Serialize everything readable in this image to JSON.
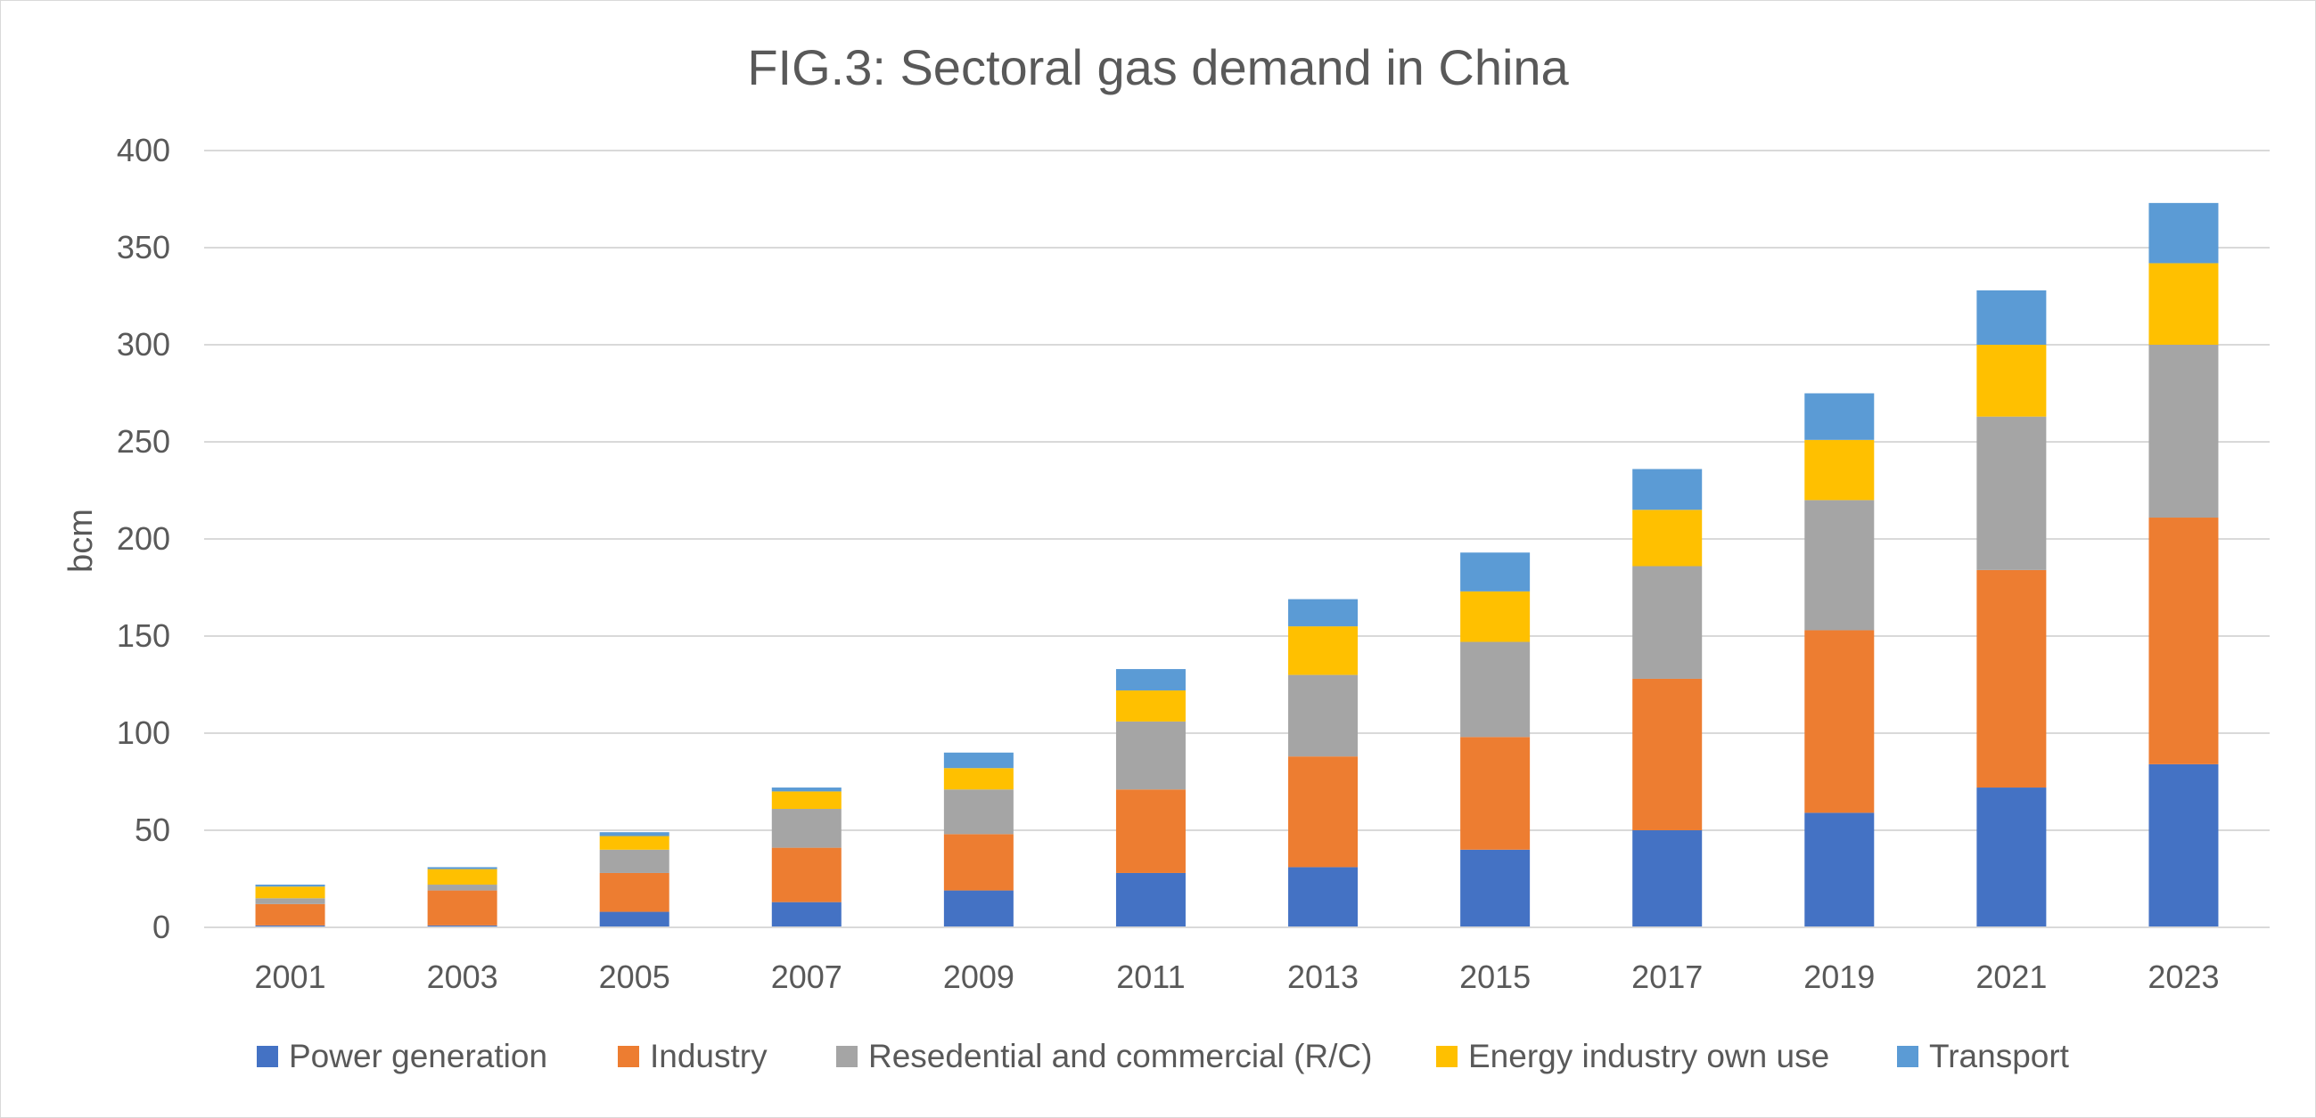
{
  "chart_data": {
    "type": "bar",
    "stacked": true,
    "title": "FIG.3: Sectoral gas demand in China",
    "xlabel": "",
    "ylabel": "bcm",
    "ylim": [
      0,
      400
    ],
    "yticks": [
      0,
      50,
      100,
      150,
      200,
      250,
      300,
      350,
      400
    ],
    "grid": true,
    "legend_position": "bottom",
    "categories": [
      "2001",
      "2003",
      "2005",
      "2007",
      "2009",
      "2011",
      "2013",
      "2015",
      "2017",
      "2019",
      "2021",
      "2023"
    ],
    "series": [
      {
        "name": "Power generation",
        "color": "#4472C4",
        "values": [
          1,
          1,
          8,
          13,
          19,
          28,
          31,
          40,
          50,
          59,
          72,
          84
        ]
      },
      {
        "name": "Industry",
        "color": "#ED7D31",
        "values": [
          11,
          18,
          20,
          28,
          29,
          43,
          57,
          58,
          78,
          94,
          112,
          127
        ]
      },
      {
        "name": "Resedential and commercial (R/C)",
        "color": "#A5A5A5",
        "values": [
          3,
          3,
          12,
          20,
          23,
          35,
          42,
          49,
          58,
          67,
          79,
          89
        ]
      },
      {
        "name": "Energy industry own use",
        "color": "#FFC000",
        "values": [
          6,
          8,
          7,
          9,
          11,
          16,
          25,
          26,
          29,
          31,
          37,
          42
        ]
      },
      {
        "name": "Transport",
        "color": "#5B9BD5",
        "values": [
          1,
          1,
          2,
          2,
          8,
          11,
          14,
          20,
          21,
          24,
          28,
          31
        ]
      }
    ]
  }
}
